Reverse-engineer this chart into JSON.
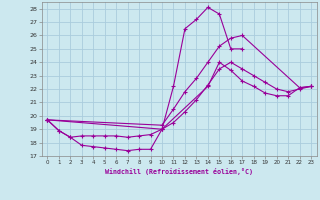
{
  "xlabel": "Windchill (Refroidissement éolien,°C)",
  "background_color": "#cce8ef",
  "grid_color": "#aaccdd",
  "line_color": "#990099",
  "xlim": [
    -0.5,
    23.5
  ],
  "ylim": [
    17,
    28.5
  ],
  "xticks": [
    0,
    1,
    2,
    3,
    4,
    5,
    6,
    7,
    8,
    9,
    10,
    11,
    12,
    13,
    14,
    15,
    16,
    17,
    18,
    19,
    20,
    21,
    22,
    23
  ],
  "yticks": [
    17,
    18,
    19,
    20,
    21,
    22,
    23,
    24,
    25,
    26,
    27,
    28
  ],
  "line1_x": [
    0,
    1,
    2,
    3,
    4,
    5,
    6,
    7,
    8,
    9,
    10,
    11,
    12,
    13,
    14,
    15,
    16,
    17
  ],
  "line1_y": [
    19.7,
    18.9,
    18.4,
    17.8,
    17.7,
    17.6,
    17.5,
    17.4,
    17.5,
    17.5,
    19.0,
    22.2,
    26.5,
    27.2,
    28.1,
    27.6,
    25.0,
    25.0
  ],
  "line2_x": [
    0,
    10,
    11,
    12,
    13,
    14,
    15,
    16,
    17,
    22,
    23
  ],
  "line2_y": [
    19.7,
    19.3,
    20.5,
    21.8,
    22.8,
    24.0,
    25.2,
    25.8,
    26.0,
    22.1,
    22.2
  ],
  "line3_x": [
    0,
    1,
    2,
    3,
    4,
    5,
    6,
    7,
    8,
    9,
    10,
    14,
    15,
    16,
    17,
    18,
    19,
    20,
    21,
    22,
    23
  ],
  "line3_y": [
    19.7,
    18.9,
    18.4,
    18.5,
    18.5,
    18.5,
    18.5,
    18.4,
    18.5,
    18.6,
    19.0,
    22.2,
    24.0,
    23.4,
    22.6,
    22.2,
    21.7,
    21.5,
    21.5,
    22.1,
    22.2
  ],
  "line4_x": [
    0,
    10,
    11,
    12,
    13,
    14,
    15,
    16,
    17,
    18,
    19,
    20,
    21,
    22,
    23
  ],
  "line4_y": [
    19.7,
    19.0,
    19.5,
    20.3,
    21.2,
    22.3,
    23.5,
    24.0,
    23.5,
    23.0,
    22.5,
    22.0,
    21.8,
    22.0,
    22.2
  ]
}
